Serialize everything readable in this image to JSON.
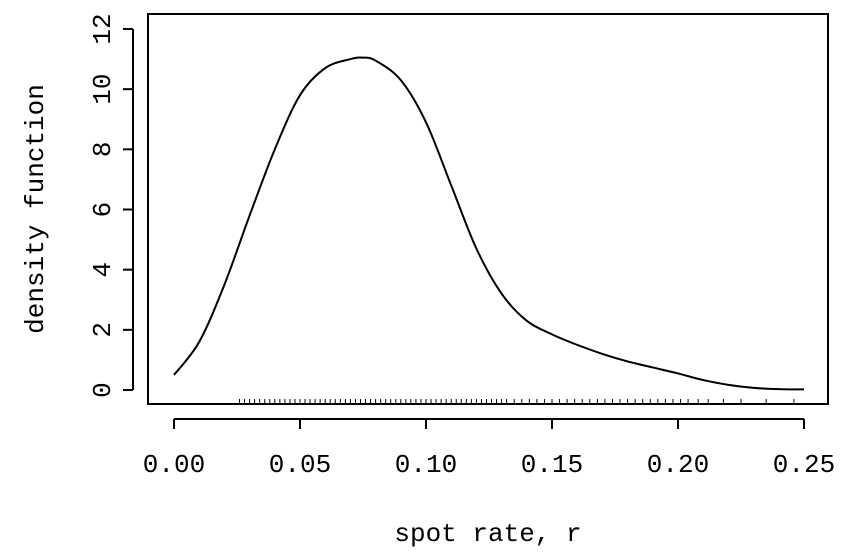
{
  "chart_data": {
    "type": "line",
    "title": "",
    "xlabel": "spot rate, r",
    "ylabel": "density function",
    "xlim": [
      0.0,
      0.25
    ],
    "ylim": [
      0,
      12
    ],
    "x_ticks": [
      0.0,
      0.05,
      0.1,
      0.15,
      0.2,
      0.25
    ],
    "x_tick_labels": [
      "0.00",
      "0.05",
      "0.10",
      "0.15",
      "0.20",
      "0.25"
    ],
    "y_ticks": [
      0,
      2,
      4,
      6,
      8,
      10,
      12
    ],
    "y_tick_labels": [
      "0",
      "2",
      "4",
      "6",
      "8",
      "10",
      "12"
    ],
    "grid": false,
    "legend": "none",
    "line_color": "#000000",
    "series": [
      {
        "x": [
          0.0,
          0.01,
          0.02,
          0.03,
          0.04,
          0.05,
          0.06,
          0.07,
          0.075,
          0.08,
          0.09,
          0.1,
          0.11,
          0.12,
          0.13,
          0.14,
          0.15,
          0.16,
          0.17,
          0.18,
          0.19,
          0.2,
          0.21,
          0.22,
          0.23,
          0.24,
          0.25
        ],
        "y": [
          0.5,
          1.6,
          3.5,
          5.8,
          8.0,
          9.8,
          10.7,
          11.0,
          11.05,
          10.95,
          10.3,
          8.9,
          6.8,
          4.7,
          3.2,
          2.3,
          1.85,
          1.5,
          1.2,
          0.95,
          0.75,
          0.55,
          0.33,
          0.17,
          0.07,
          0.03,
          0.02
        ]
      }
    ],
    "rug": [
      0.026,
      0.028,
      0.03,
      0.032,
      0.034,
      0.036,
      0.038,
      0.04,
      0.042,
      0.044,
      0.046,
      0.048,
      0.05,
      0.052,
      0.054,
      0.056,
      0.058,
      0.06,
      0.062,
      0.064,
      0.066,
      0.068,
      0.07,
      0.072,
      0.074,
      0.076,
      0.078,
      0.08,
      0.082,
      0.084,
      0.086,
      0.088,
      0.09,
      0.092,
      0.094,
      0.096,
      0.098,
      0.1,
      0.102,
      0.104,
      0.106,
      0.108,
      0.11,
      0.112,
      0.114,
      0.116,
      0.118,
      0.12,
      0.122,
      0.124,
      0.126,
      0.128,
      0.13,
      0.132,
      0.135,
      0.138,
      0.141,
      0.144,
      0.147,
      0.15,
      0.153,
      0.156,
      0.159,
      0.162,
      0.165,
      0.168,
      0.171,
      0.174,
      0.177,
      0.18,
      0.183,
      0.186,
      0.189,
      0.192,
      0.195,
      0.198,
      0.201,
      0.204,
      0.208,
      0.212,
      0.218,
      0.225,
      0.235,
      0.246
    ]
  }
}
